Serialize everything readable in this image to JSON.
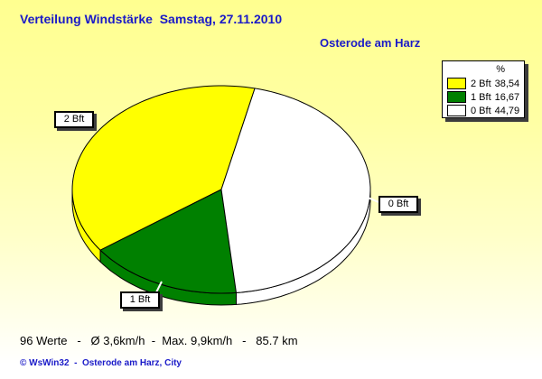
{
  "chart_data": {
    "type": "pie",
    "style": "3d-ellipse",
    "title": "Verteilung Windstärke  Samstag, 27.11.2010",
    "subtitle": "Osterode am Harz",
    "unit": "%",
    "start_angle_deg": 77,
    "direction": "counterclockwise",
    "legend_position": "top-right",
    "slices": [
      {
        "label": "2 Bft",
        "value": 38.54,
        "value_display": "38,54",
        "color": "#ffff00"
      },
      {
        "label": "1 Bft",
        "value": 16.67,
        "value_display": "16,67",
        "color": "#008000"
      },
      {
        "label": "0 Bft",
        "value": 44.79,
        "value_display": "44,79",
        "color": "#ffffff"
      }
    ]
  },
  "footer": {
    "stats": "96 Werte   -   Ø 3,6km/h  -  Max. 9,9km/h   -   85.7 km",
    "stats_values": {
      "count": "96",
      "avg": "3,6km/h",
      "max": "9,9km/h",
      "distance": "85.7 km"
    },
    "copyright": "© WsWin32  -  Osterode am Harz, City"
  }
}
